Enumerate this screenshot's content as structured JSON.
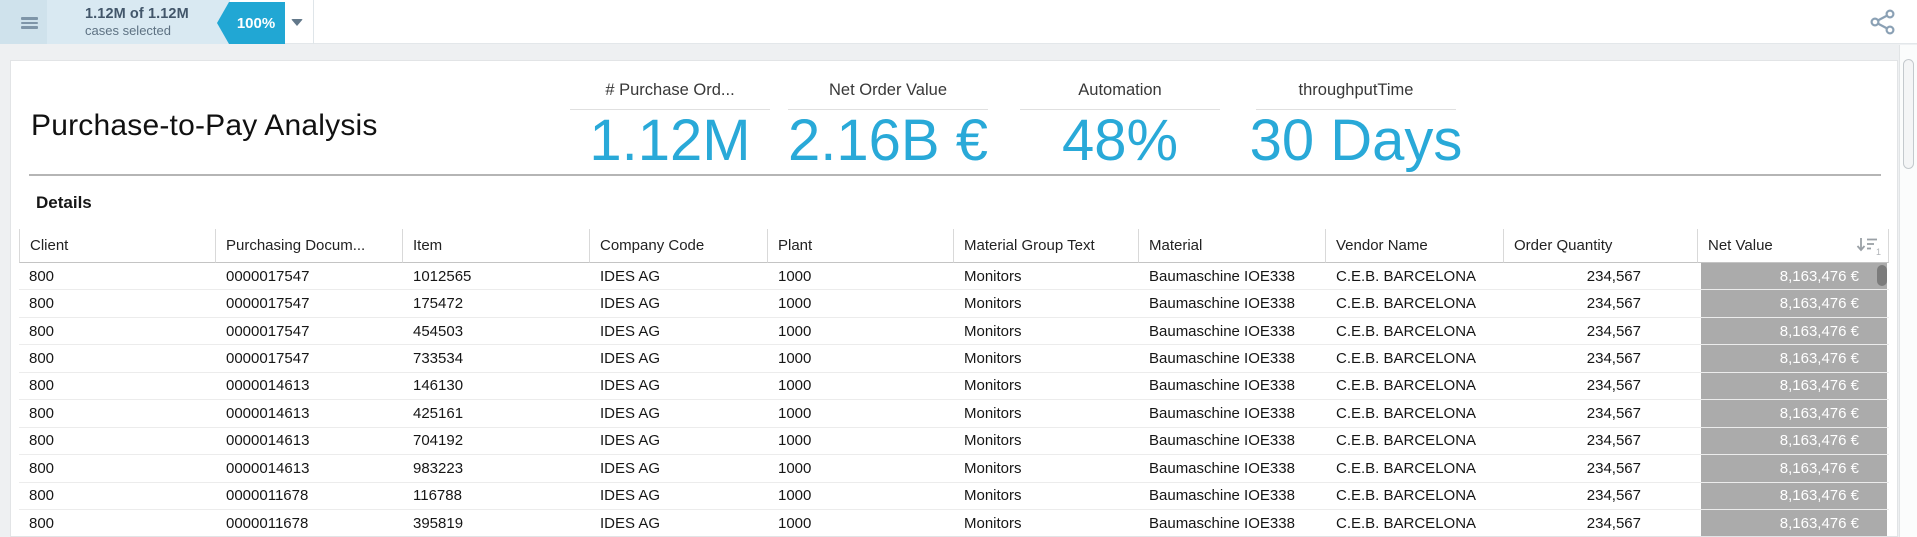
{
  "topbar": {
    "selection_summary": "1.12M of 1.12M",
    "selection_detail": "cases selected",
    "selection_badge": "100%"
  },
  "header": {
    "title": "Purchase-to-Pay Analysis"
  },
  "kpis": [
    {
      "label": "# Purchase Ord...",
      "value": "1.12M"
    },
    {
      "label": "Net Order Value",
      "value": "2.16B €"
    },
    {
      "label": "Automation",
      "value": "48%"
    },
    {
      "label": "throughputTime",
      "value": "30 Days"
    }
  ],
  "details": {
    "label": "Details"
  },
  "table": {
    "columns": [
      "Client",
      "Purchasing Docum...",
      "Item",
      "Company Code",
      "Plant",
      "Material Group Text",
      "Material",
      "Vendor Name",
      "Order Quantity",
      "Net Value"
    ],
    "sort": {
      "column": "Net Value",
      "direction": "descending",
      "order": "1"
    },
    "rows": [
      [
        "800",
        "0000017547",
        "1012565",
        "IDES AG",
        "1000",
        "Monitors",
        "Baumaschine IOE338",
        "C.E.B. BARCELONA",
        "234,567",
        "8,163,476 €"
      ],
      [
        "800",
        "0000017547",
        "175472",
        "IDES AG",
        "1000",
        "Monitors",
        "Baumaschine IOE338",
        "C.E.B. BARCELONA",
        "234,567",
        "8,163,476 €"
      ],
      [
        "800",
        "0000017547",
        "454503",
        "IDES AG",
        "1000",
        "Monitors",
        "Baumaschine IOE338",
        "C.E.B. BARCELONA",
        "234,567",
        "8,163,476 €"
      ],
      [
        "800",
        "0000017547",
        "733534",
        "IDES AG",
        "1000",
        "Monitors",
        "Baumaschine IOE338",
        "C.E.B. BARCELONA",
        "234,567",
        "8,163,476 €"
      ],
      [
        "800",
        "0000014613",
        "146130",
        "IDES AG",
        "1000",
        "Monitors",
        "Baumaschine IOE338",
        "C.E.B. BARCELONA",
        "234,567",
        "8,163,476 €"
      ],
      [
        "800",
        "0000014613",
        "425161",
        "IDES AG",
        "1000",
        "Monitors",
        "Baumaschine IOE338",
        "C.E.B. BARCELONA",
        "234,567",
        "8,163,476 €"
      ],
      [
        "800",
        "0000014613",
        "704192",
        "IDES AG",
        "1000",
        "Monitors",
        "Baumaschine IOE338",
        "C.E.B. BARCELONA",
        "234,567",
        "8,163,476 €"
      ],
      [
        "800",
        "0000014613",
        "983223",
        "IDES AG",
        "1000",
        "Monitors",
        "Baumaschine IOE338",
        "C.E.B. BARCELONA",
        "234,567",
        "8,163,476 €"
      ],
      [
        "800",
        "0000011678",
        "116788",
        "IDES AG",
        "1000",
        "Monitors",
        "Baumaschine IOE338",
        "C.E.B. BARCELONA",
        "234,567",
        "8,163,476 €"
      ],
      [
        "800",
        "0000011678",
        "395819",
        "IDES AG",
        "1000",
        "Monitors",
        "Baumaschine IOE338",
        "C.E.B. BARCELONA",
        "234,567",
        "8,163,476 €"
      ]
    ]
  },
  "icons": {
    "hamburger": "hamburger-menu-icon",
    "caret": "dropdown-caret-icon",
    "share": "share-icon",
    "sort": "sort-descending-icon"
  },
  "colors": {
    "accent_cyan": "#29a9d8",
    "badge_cyan": "#21a7d4",
    "selection_bg": "#d9e9f2",
    "net_value_cell_bg": "#ababab"
  }
}
